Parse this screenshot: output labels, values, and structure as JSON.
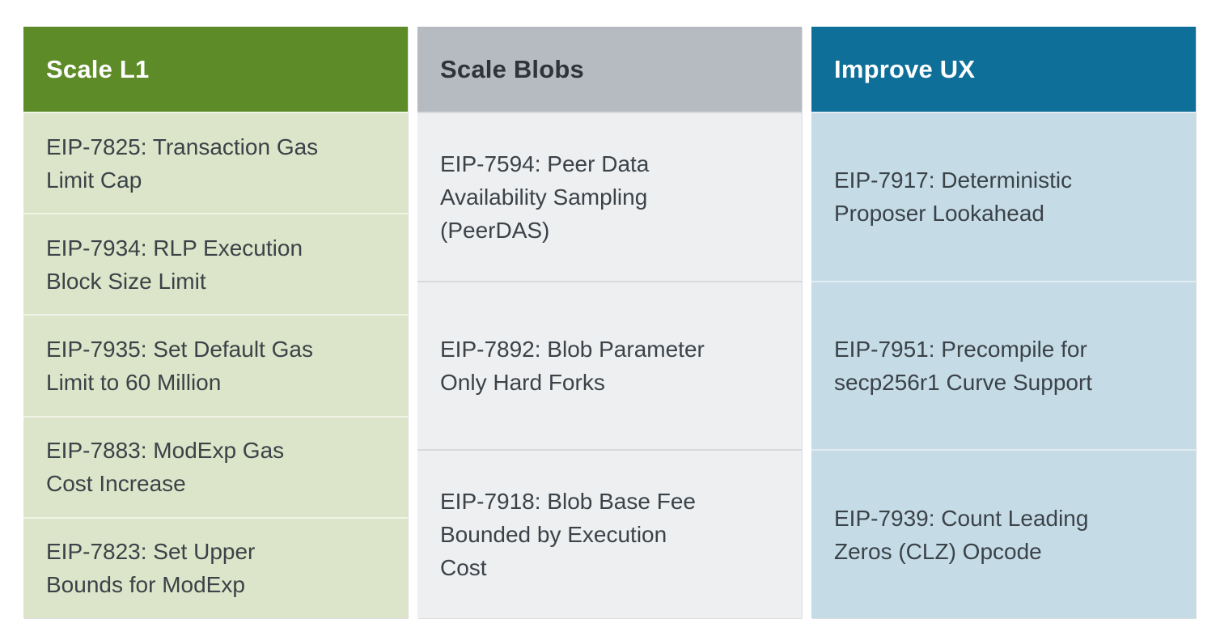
{
  "page": {
    "background": "#ffffff",
    "body_text_color": "#3b4248"
  },
  "columns": [
    {
      "title": "Scale L1",
      "colors": {
        "header_bg": "#5c8b27",
        "header_text": "#ffffff",
        "body_bg": "#dce5c9",
        "divider": "#f0f3e6",
        "body_text": "#3b4248"
      },
      "items": [
        "EIP-7825: Transaction Gas\nLimit Cap",
        "EIP-7934: RLP Execution\nBlock Size Limit",
        "EIP-7935: Set Default Gas\nLimit to 60 Million",
        "EIP-7883: ModExp Gas\nCost Increase",
        "EIP-7823: Set Upper\nBounds for ModExp"
      ]
    },
    {
      "title": "Scale Blobs",
      "colors": {
        "header_bg": "#b6bbc1",
        "header_text": "#2d343b",
        "body_bg": "#edeff0",
        "divider": "#d7dadd",
        "body_text": "#3b4248"
      },
      "items": [
        "EIP-7594: Peer Data\nAvailability Sampling\n(PeerDAS)",
        "EIP-7892: Blob Parameter\nOnly Hard Forks",
        "EIP-7918: Blob Base Fee\nBounded by Execution\nCost"
      ]
    },
    {
      "title": "Improve UX",
      "colors": {
        "header_bg": "#0e6f99",
        "header_text": "#ffffff",
        "body_bg": "#c5dce7",
        "divider": "#e2ebf1",
        "body_text": "#3b4248"
      },
      "items": [
        "EIP-7917: Deterministic\nProposer Lookahead",
        "EIP-7951: Precompile for\nsecp256r1 Curve Support",
        "EIP-7939: Count Leading\nZeros (CLZ) Opcode"
      ]
    }
  ]
}
